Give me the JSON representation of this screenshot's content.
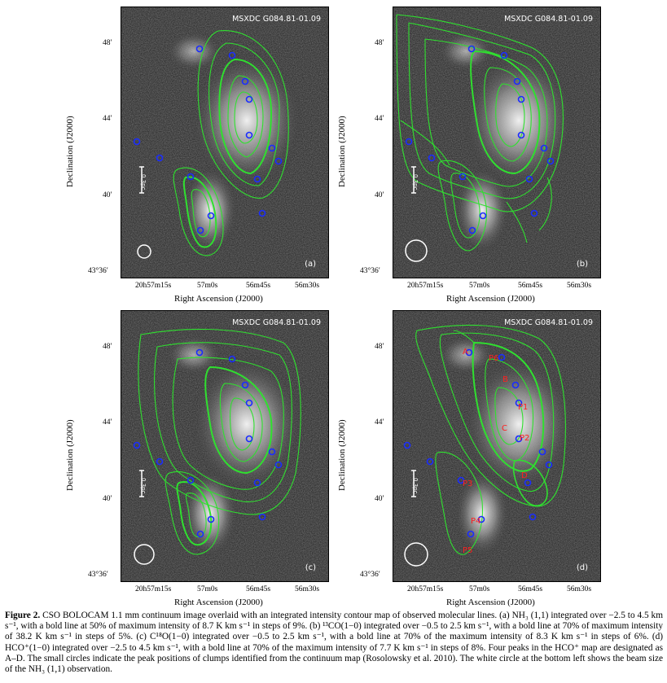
{
  "figure": {
    "panels": [
      {
        "id": "a",
        "title": "MSXDC G084.81-01.09",
        "panel_label": "(a)",
        "scalebar_label": "0.3pc"
      },
      {
        "id": "b",
        "title": "MSXDC G084.81-01.09",
        "panel_label": "(b)",
        "scalebar_label": "0.3pc"
      },
      {
        "id": "c",
        "title": "MSXDC G084.81-01.09",
        "panel_label": "(c)",
        "scalebar_label": "0.3pc"
      },
      {
        "id": "d",
        "title": "MSXDC G084.81-01.09",
        "panel_label": "(d)",
        "scalebar_label": "0.3pc"
      }
    ],
    "axes": {
      "xlabel": "Right Ascension (J2000)",
      "ylabel": "Declination (J2000)",
      "xticks": [
        "20h57m15s",
        "57m0s",
        "56m45s",
        "56m30s"
      ],
      "yticks": [
        "48′",
        "44′",
        "40′",
        "43°36′"
      ]
    },
    "hco_peaks": [
      "A",
      "B",
      "C",
      "D"
    ],
    "clump_labels": [
      "P1",
      "P2",
      "P3",
      "P4",
      "P5",
      "P6"
    ],
    "colors": {
      "contour": "#2fe02f",
      "circle": "#1a2cff",
      "peak_label": "#ff2020",
      "background": "#202020"
    }
  },
  "caption": {
    "prefix": "Figure 2.",
    "text": "CSO BOLOCAM 1.1 mm continuum image overlaid with an integrated intensity contour map of observed molecular lines. (a) NH₃ (1,1) integrated over −2.5 to 4.5 km s⁻¹, with a bold line at 50% of maximum intensity of 8.7 K km s⁻¹ in steps of 9%. (b) ¹³CO(1−0) integrated over −0.5 to 2.5 km s⁻¹, with a bold line at 70% of maximum intensity of 38.2 K km s⁻¹ in steps of 5%. (c) C¹⁸O(1−0) integrated over −0.5 to 2.5 km s⁻¹, with a bold line at 70% of the maximum intensity of 8.3 K km s⁻¹ in steps of 6%. (d) HCO⁺(1−0) integrated over −2.5 to 4.5 km s⁻¹, with a bold line at 70% of the maximum intensity of 7.7 K km s⁻¹ in steps of 8%. Four peaks in the HCO⁺ map are designated as A–D. The small circles indicate the peak positions of clumps identified from the continuum map (Rosolowsky et al. 2010). The white circle at the bottom left shows the beam size of the NH₃ (1,1) observation."
  }
}
